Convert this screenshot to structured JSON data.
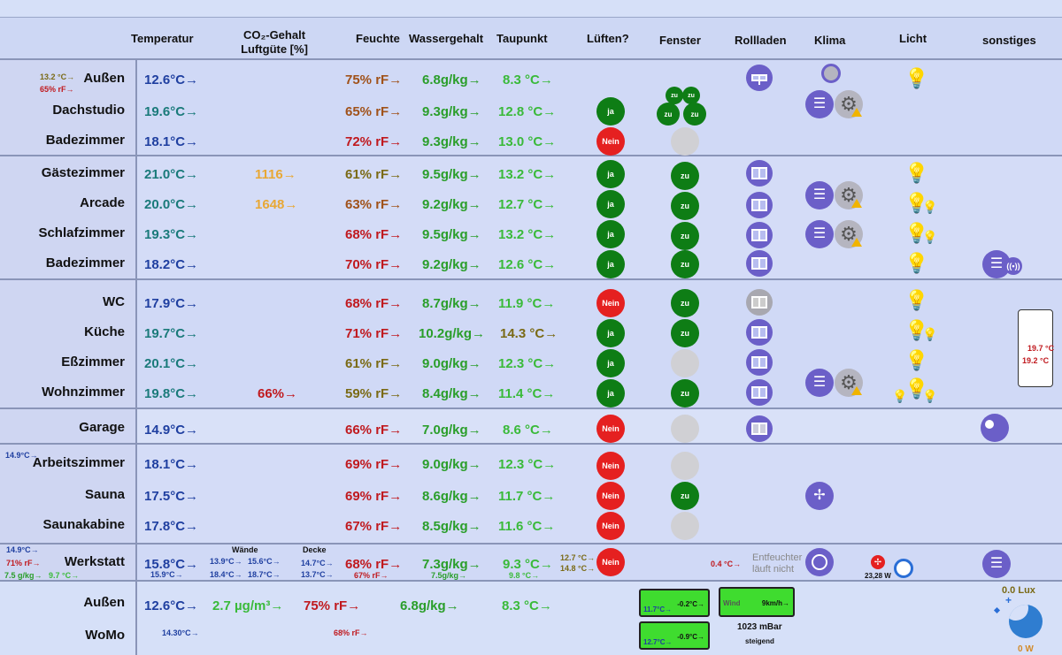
{
  "headers": {
    "temperatur": "Temperatur",
    "co2": "CO₂-Gehalt",
    "luftguete": "Luftgüte [%]",
    "feuchte": "Feuchte",
    "wassergehalt": "Wassergehalt",
    "taupunkt": "Taupunkt",
    "lueften": "Lüften?",
    "fenster": "Fenster",
    "rollladen": "Rollladen",
    "klima": "Klima",
    "licht": "Licht",
    "sonstiges": "sonstiges"
  },
  "group1": {
    "aussen_small_temp": "13.2 °C→",
    "aussen_small_hum": "65% rF→",
    "rows": [
      {
        "room": "Außen",
        "temp": "12.6°C→",
        "co2": "",
        "hum": "75% rF→",
        "water": "6.8g/kg→",
        "dew": "8.3 °C→"
      },
      {
        "room": "Dachstudio",
        "temp": "19.6°C→",
        "co2": "",
        "hum": "65% rF→",
        "water": "9.3g/kg→",
        "dew": "12.8 °C→",
        "lueften": "ja"
      },
      {
        "room": "Badezimmer",
        "temp": "18.1°C→",
        "co2": "",
        "hum": "72% rF→",
        "water": "9.3g/kg→",
        "dew": "13.0 °C→",
        "lueften": "Nein"
      }
    ],
    "window_zu": "zu"
  },
  "group2": {
    "rows": [
      {
        "room": "Gästezimmer",
        "temp": "21.0°C→",
        "co2": "1116→",
        "hum": "61% rF→",
        "water": "9.5g/kg→",
        "dew": "13.2 °C→",
        "lueften": "ja",
        "fenster": "zu"
      },
      {
        "room": "Arcade",
        "temp": "20.0°C→",
        "co2": "1648→",
        "hum": "63% rF→",
        "water": "9.2g/kg→",
        "dew": "12.7 °C→",
        "lueften": "ja",
        "fenster": "zu"
      },
      {
        "room": "Schlafzimmer",
        "temp": "19.3°C→",
        "co2": "",
        "hum": "68% rF→",
        "water": "9.5g/kg→",
        "dew": "13.2 °C→",
        "lueften": "ja",
        "fenster": "zu"
      },
      {
        "room": "Badezimmer",
        "temp": "18.2°C→",
        "co2": "",
        "hum": "70% rF→",
        "water": "9.2g/kg→",
        "dew": "12.6 °C→",
        "lueften": "ja",
        "fenster": "zu"
      }
    ]
  },
  "group3": {
    "rows": [
      {
        "room": "WC",
        "temp": "17.9°C→",
        "co2": "",
        "hum": "68% rF→",
        "water": "8.7g/kg→",
        "dew": "11.9 °C→",
        "lueften": "Nein",
        "fenster": "zu"
      },
      {
        "room": "Küche",
        "temp": "19.7°C→",
        "co2": "",
        "hum": "71% rF→",
        "water": "10.2g/kg→",
        "dew": "14.3 °C→",
        "lueften": "ja",
        "fenster": "zu"
      },
      {
        "room": "Eßzimmer",
        "temp": "20.1°C→",
        "co2": "",
        "hum": "61% rF→",
        "water": "9.0g/kg→",
        "dew": "12.3 °C→",
        "lueften": "ja",
        "fenster": ""
      },
      {
        "room": "Wohnzimmer",
        "temp": "19.8°C→",
        "co2": "66%→",
        "hum": "59% rF→",
        "water": "8.4g/kg→",
        "dew": "11.4 °C→",
        "lueften": "ja",
        "fenster": "zu"
      }
    ],
    "phone_temp1": "19.7 °C",
    "phone_temp2": "19.2 °C"
  },
  "garage": {
    "room": "Garage",
    "temp": "14.9°C→",
    "hum": "66% rF→",
    "water": "7.0g/kg→",
    "dew": "8.6 °C→",
    "lueften": "Nein"
  },
  "group5": {
    "small_temp": "14.9°C→",
    "rows": [
      {
        "room": "Arbeitszimmer",
        "temp": "18.1°C→",
        "hum": "69% rF→",
        "water": "9.0g/kg→",
        "dew": "12.3 °C→",
        "lueften": "Nein",
        "fenster": ""
      },
      {
        "room": "Sauna",
        "temp": "17.5°C→",
        "hum": "69% rF→",
        "water": "8.6g/kg→",
        "dew": "11.7 °C→",
        "lueften": "Nein",
        "fenster": "zu"
      },
      {
        "room": "Saunakabine",
        "temp": "17.8°C→",
        "hum": "67% rF→",
        "water": "8.5g/kg→",
        "dew": "11.6 °C→",
        "lueften": "Nein",
        "fenster": ""
      }
    ]
  },
  "werkstatt": {
    "room": "Werkstatt",
    "small_temp": "14.9°C→",
    "small_hum": "71% rF→",
    "small_water": "7.5 g/kg→",
    "small_dew": "9.7 °C→",
    "temp": "15.8°C→",
    "temp_sub": "15.9°C→",
    "waende_label": "Wände",
    "decke_label": "Decke",
    "w1": "13.9°C→",
    "w2": "15.6°C→",
    "w3": "18.4°C→",
    "w4": "18.7°C→",
    "d1": "14.7°C→",
    "d2": "13.7°C→",
    "hum": "68% rF→",
    "hum_sub": "67% rF→",
    "water": "7.3g/kg→",
    "water_sub": "7.5g/kg→",
    "dew": "9.3 °C→",
    "dew_sub": "9.8 °C→",
    "dew2a": "12.7 °C→",
    "dew2b": "14.8 °C→",
    "lueften": "Nein",
    "entf_temp": "0.4 °C→",
    "entf_line1": "Entfeuchter",
    "entf_line2": "läuft nicht",
    "power": "23,28 W"
  },
  "footer": {
    "aussen": "Außen",
    "aussen_temp": "12.6°C→",
    "pm": "2.7 µg/m³→",
    "hum": "75% rF→",
    "water": "6.8g/kg→",
    "dew": "8.3 °C→",
    "womo": "WoMo",
    "womo_temp": "14.30°C→",
    "womo_hum": "68% rF→",
    "box1_val": "-0.2°C→",
    "box1_temp": "11.7°C→",
    "box2_val": "-0.9°C→",
    "box2_temp": "12.7°C→",
    "wind_label": "Wind",
    "wind_val": "9km/h→",
    "pressure": "1023 mBar",
    "trend": "steigend",
    "lux": "0.0 Lux",
    "watt": "0 W"
  },
  "colors": {
    "background": "#cfd9f5",
    "accent_purple": "#6b5fc8",
    "ja_green": "#0e7d15",
    "nein_red": "#e52020"
  }
}
